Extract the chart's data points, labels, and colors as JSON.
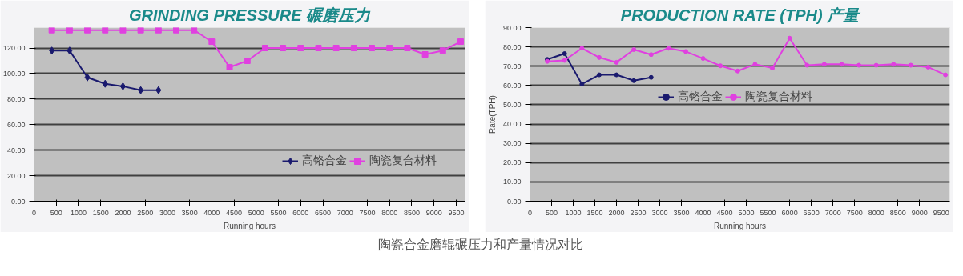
{
  "chart_data": [
    {
      "type": "line",
      "title": "GRINDING PRESSURE 碾磨压力",
      "xlabel": "Running hours",
      "xlim": [
        0,
        9700
      ],
      "xticks": [
        0,
        500,
        1000,
        1500,
        2000,
        2500,
        3000,
        3500,
        4000,
        4500,
        5000,
        5500,
        6000,
        6500,
        7000,
        7500,
        8000,
        8500,
        9000,
        9500
      ],
      "ylim": [
        0,
        136
      ],
      "yticks": [
        {
          "value": 0,
          "label": "0.00"
        },
        {
          "value": 20,
          "label": "20.00"
        },
        {
          "value": 40,
          "label": "40.00"
        },
        {
          "value": 60,
          "label": "60.00"
        },
        {
          "value": 80,
          "label": "80.00"
        },
        {
          "value": 100,
          "label": "100.00"
        },
        {
          "value": 120,
          "label": "120.00"
        }
      ],
      "grid": "y",
      "legend": "bottom right",
      "series": [
        {
          "name": "高铬合金",
          "color": "#1a1a6e",
          "marker": "diamond",
          "x": [
            400,
            800,
            1200,
            1600,
            2000,
            2400,
            2800
          ],
          "values": [
            118,
            118,
            97,
            92,
            90,
            87,
            87
          ]
        },
        {
          "name": "陶瓷复合材料",
          "color": "#e040e0",
          "marker": "square",
          "x": [
            400,
            800,
            1200,
            1600,
            2000,
            2400,
            2800,
            3200,
            3600,
            4000,
            4400,
            4800,
            5200,
            5600,
            6000,
            6400,
            6800,
            7200,
            7600,
            8000,
            8400,
            8800,
            9200,
            9600
          ],
          "values": [
            134,
            134,
            134,
            134,
            134,
            134,
            134,
            134,
            134,
            125,
            105,
            110,
            120,
            120,
            120,
            120,
            120,
            120,
            120,
            120,
            120,
            115,
            118,
            125
          ]
        }
      ]
    },
    {
      "type": "line",
      "title": "PRODUCTION RATE (TPH) 产量",
      "xlabel": "Running hours",
      "ylabel": "Rate(TPH)",
      "xlim": [
        0,
        9700
      ],
      "xticks": [
        0,
        500,
        1000,
        1500,
        2000,
        2500,
        3000,
        3500,
        4000,
        4500,
        5000,
        5500,
        6000,
        6500,
        7000,
        7500,
        8000,
        8500,
        9000,
        9500
      ],
      "ylim": [
        0,
        90
      ],
      "yticks": [
        {
          "value": 0,
          "label": "0.00"
        },
        {
          "value": 10,
          "label": "10.00"
        },
        {
          "value": 20,
          "label": "20.00"
        },
        {
          "value": 30,
          "label": "30.00"
        },
        {
          "value": 40,
          "label": "40.00"
        },
        {
          "value": 50,
          "label": "50.00"
        },
        {
          "value": 60,
          "label": "60.00"
        },
        {
          "value": 70,
          "label": "70.00"
        },
        {
          "value": 80,
          "label": "80.00"
        },
        {
          "value": 90,
          "label": "90.00"
        }
      ],
      "grid": "y",
      "legend": "center",
      "marker": "circle",
      "annotations": [
        "陶瓷合金磨辊碾压力和产量情况对比"
      ],
      "series": [
        {
          "name": "高铬合金",
          "color": "#1a1a6e",
          "x": [
            400,
            800,
            1200,
            1600,
            2000,
            2400,
            2800
          ],
          "values": [
            73.5,
            76.5,
            60.7,
            65.5,
            65.5,
            62.5,
            64.2
          ]
        },
        {
          "name": "陶瓷复合材料",
          "color": "#e040e0",
          "x": [
            400,
            800,
            1200,
            1600,
            2000,
            2400,
            2800,
            3200,
            3600,
            4000,
            4400,
            4800,
            5200,
            5600,
            6000,
            6400,
            6800,
            7200,
            7600,
            8000,
            8400,
            8800,
            9200,
            9600
          ],
          "values": [
            72.5,
            73,
            79.3,
            74.5,
            72,
            78.6,
            76,
            79.3,
            77.6,
            74,
            70.2,
            67.5,
            71,
            69,
            84.5,
            70.5,
            71,
            71,
            70.5,
            70.5,
            71,
            70.5,
            69.5,
            65.5
          ]
        }
      ]
    }
  ]
}
